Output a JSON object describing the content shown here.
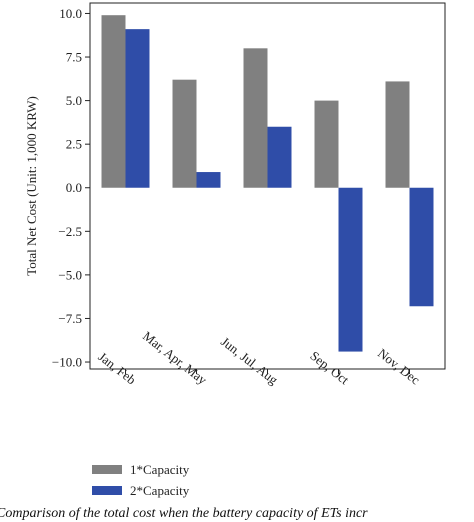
{
  "chart_data": {
    "type": "bar",
    "categories": [
      "Jan, Feb",
      "Mar, Apr, May",
      "Jun, Jul, Aug",
      "Sep, Oct",
      "Nov, Dec"
    ],
    "series": [
      {
        "name": "1*Capacity",
        "color": "#808080",
        "values": [
          9.9,
          6.2,
          8.0,
          5.0,
          6.1
        ]
      },
      {
        "name": "2*Capacity",
        "color": "#2f4da8",
        "values": [
          9.1,
          0.9,
          3.5,
          -9.4,
          -6.8
        ]
      }
    ],
    "ylabel": "Total Net Cost (Unit: 1,000 KRW)",
    "xlabel": "",
    "title": "",
    "ylim": [
      -10.4,
      10.6
    ],
    "yticks": [
      10.0,
      7.5,
      5.0,
      2.5,
      0.0,
      -2.5,
      -5.0,
      -7.5,
      -10.0
    ],
    "ytick_labels": [
      "10.0",
      "7.5",
      "5.0",
      "2.5",
      "0.0",
      "−2.5",
      "−5.0",
      "−7.5",
      "−10.0"
    ],
    "grid": false,
    "legend": "bottom-left, below plot"
  },
  "caption": "Comparison of the total cost when the battery capacity of ETs incr"
}
